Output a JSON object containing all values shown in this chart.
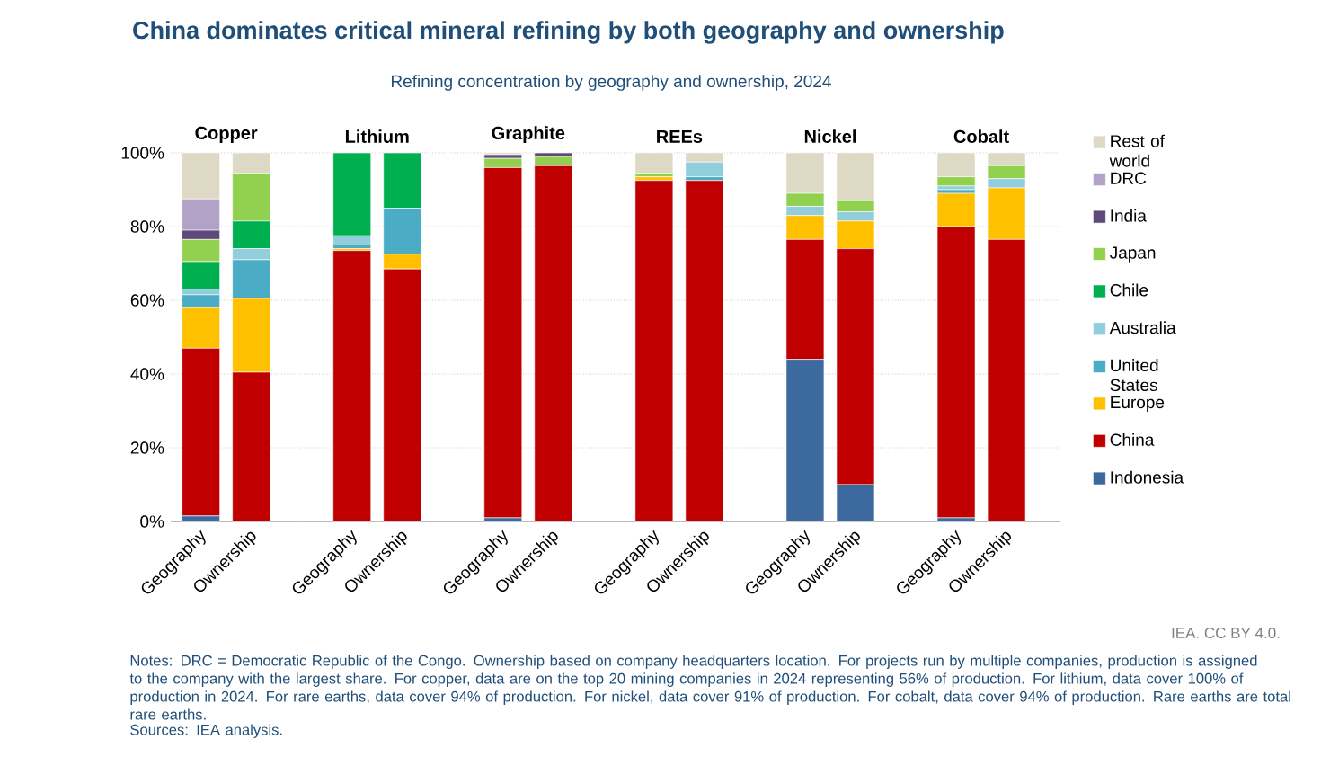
{
  "chart_data": {
    "type": "bar",
    "stacked": true,
    "title": "China dominates critical mineral refining by both geography and ownership",
    "subtitle": "Refining concentration by geography and ownership, 2024",
    "categories": [
      "Geography",
      "Ownership",
      null,
      "Geography",
      "Ownership",
      null,
      "Geography",
      "Ownership",
      null,
      "Geography",
      "Ownership",
      null,
      "Geography",
      "Ownership",
      null,
      "Geography",
      "Ownership"
    ],
    "series": [
      {
        "name": "Indonesia",
        "color": "#3d6a9e",
        "values": [
          1.5,
          0,
          null,
          0,
          0,
          null,
          1,
          0,
          null,
          0,
          0,
          null,
          44,
          10,
          null,
          1,
          0
        ]
      },
      {
        "name": "China",
        "color": "#c00000",
        "values": [
          45.5,
          40.5,
          null,
          73.5,
          68.5,
          null,
          95,
          96.5,
          null,
          92.5,
          92.5,
          null,
          32.5,
          64,
          null,
          79,
          76.5
        ]
      },
      {
        "name": "Europe",
        "color": "#ffc000",
        "values": [
          11,
          20,
          null,
          0.5,
          4,
          null,
          0,
          0,
          null,
          1,
          0,
          null,
          6.5,
          7.5,
          null,
          9,
          14
        ]
      },
      {
        "name": "United States",
        "color": "#4bacc6",
        "values": [
          3.5,
          10.5,
          null,
          1,
          12.5,
          null,
          0,
          0,
          null,
          0,
          1,
          null,
          0,
          0,
          null,
          1,
          0
        ]
      },
      {
        "name": "Australia",
        "color": "#92cddc",
        "values": [
          1.5,
          3,
          null,
          2.5,
          0,
          null,
          0,
          0,
          null,
          0,
          4,
          null,
          2.5,
          2.5,
          null,
          1,
          2.5
        ]
      },
      {
        "name": "Chile",
        "color": "#00b050",
        "values": [
          7.5,
          7.5,
          null,
          22.5,
          15,
          null,
          0,
          0,
          null,
          0,
          0,
          null,
          0,
          0,
          null,
          0,
          0
        ]
      },
      {
        "name": "Japan",
        "color": "#92d050",
        "values": [
          6,
          13,
          null,
          0,
          0,
          null,
          2.5,
          2.5,
          null,
          1,
          0,
          null,
          3.5,
          3,
          null,
          2.5,
          3.5
        ]
      },
      {
        "name": "India",
        "color": "#5f497a",
        "values": [
          2.5,
          0,
          null,
          0,
          0,
          null,
          1,
          1,
          null,
          0,
          0,
          null,
          0,
          0,
          null,
          0,
          0
        ]
      },
      {
        "name": "DRC",
        "color": "#b3a2c7",
        "values": [
          8.5,
          0,
          null,
          0,
          0,
          null,
          0,
          0,
          null,
          0,
          0,
          null,
          0,
          0,
          null,
          0,
          0
        ]
      },
      {
        "name": "Rest of world",
        "color": "#ddd9c4",
        "values": [
          12.5,
          5.5,
          null,
          0,
          0,
          null,
          0.5,
          0,
          null,
          5.5,
          2.5,
          null,
          11,
          13,
          null,
          6.5,
          3.5
        ]
      }
    ],
    "ylim": [
      0,
      100
    ],
    "yticks": [
      {
        "value": 0,
        "label": "0%"
      },
      {
        "value": 20,
        "label": "20%"
      },
      {
        "value": 40,
        "label": "40%"
      },
      {
        "value": 60,
        "label": "60%"
      },
      {
        "value": 80,
        "label": "80%"
      },
      {
        "value": 100,
        "label": "100%"
      }
    ],
    "grid": "y",
    "legend": "right",
    "annotations": [
      "Copper",
      "Lithium",
      "Graphite",
      "REEs",
      "Nickel",
      "Cobalt",
      "IEA. CC BY 4.0.",
      "Notes: DRC = Democratic Republic of the Congo. Ownership based on company headquarters location. For projects run by multiple companies, production is assigned to the company with the largest share. For copper, data are on the top 20 mining companies in 2024 representing 56% of production. For lithium, data cover 100% of production in 2024. For rare earths, data cover 94% of production. For nickel, data cover 91% of production. For cobalt, data cover 94% of production. Rare earths are total rare earths.",
      "Sources: IEA analysis."
    ]
  }
}
